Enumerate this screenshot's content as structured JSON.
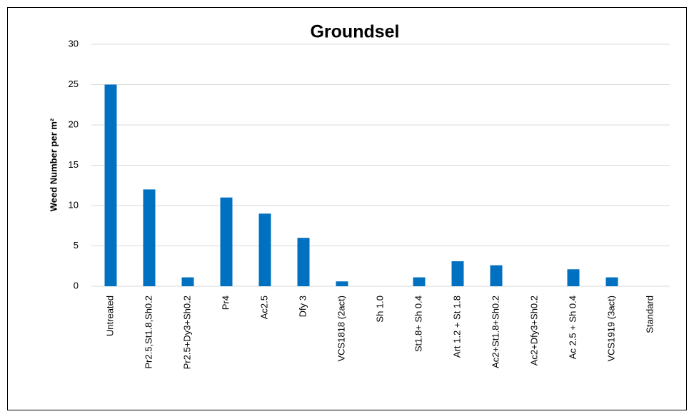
{
  "chart_data": {
    "type": "bar",
    "title": "Groundsel",
    "y_label": "Weed Number per m²",
    "categories": [
      "Untreated",
      "Pr2.5,St1.8,Sh0.2",
      "Pr2.5+Dy3+Sh0.2",
      "Pr4",
      "Ac2.5",
      "Dfy 3",
      "VCS1818 (2act)",
      "Sh 1.0",
      "St1.8+ Sh 0.4",
      "Art 1.2 + St 1.8",
      "Ac2+St1.8+Sh0.2",
      "Ac2+Dfy3+Sh0.2",
      "Ac 2.5 + Sh 0.4",
      "VCS1919 (3act)",
      "Standard"
    ],
    "values": [
      25,
      12,
      1.1,
      11,
      9,
      6,
      0.6,
      0,
      1.1,
      3.1,
      2.6,
      0,
      2.1,
      1.1,
      0
    ],
    "color": "#0070c0",
    "ylim": [
      0,
      30
    ],
    "yticks": [
      0,
      5,
      10,
      15,
      20,
      25,
      30
    ],
    "grid": true
  }
}
